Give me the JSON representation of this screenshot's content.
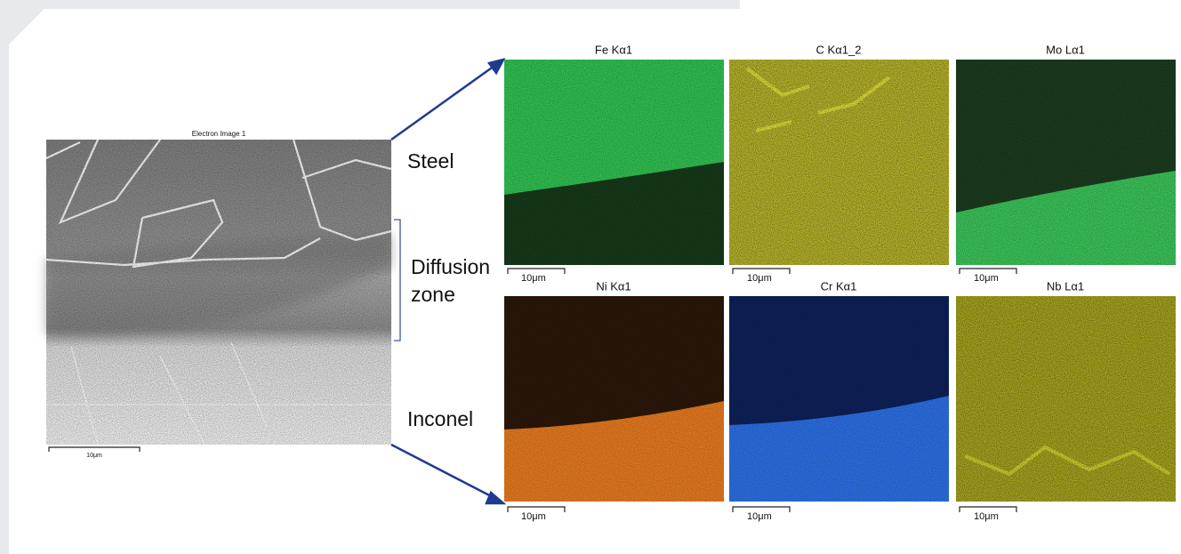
{
  "electron_image": {
    "title": "Electron Image 1",
    "scale": "10μm"
  },
  "labels": {
    "steel": "Steel",
    "diffusion_1": "Diffusion",
    "diffusion_2": "zone",
    "inconel": "Inconel"
  },
  "maps": [
    {
      "title": "Fe Kα1",
      "scale": "10μm"
    },
    {
      "title": "C Kα1_2",
      "scale": "10μm"
    },
    {
      "title": "Mo Lα1",
      "scale": "10μm"
    },
    {
      "title": "Ni Kα1",
      "scale": "10μm"
    },
    {
      "title": "Cr Kα1",
      "scale": "10μm"
    },
    {
      "title": "Nb Lα1",
      "scale": "10μm"
    }
  ]
}
